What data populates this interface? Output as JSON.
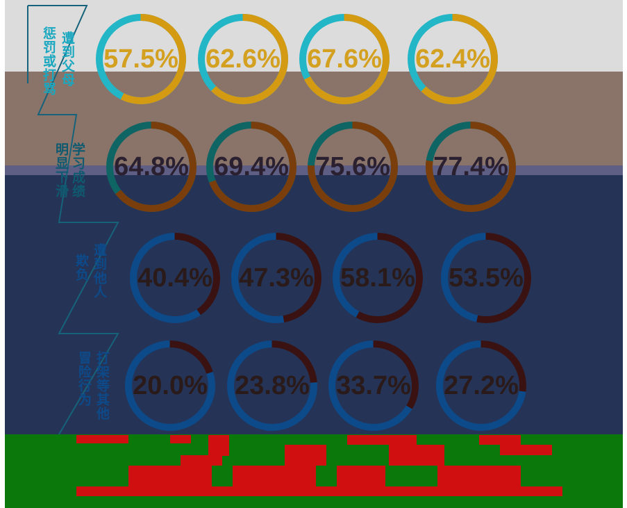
{
  "chart_data": {
    "type": "donut",
    "rows": [
      {
        "label_columns": [
          "遭到父母",
          "惩罚或打骂"
        ],
        "values": [
          57.5,
          62.6,
          67.6,
          62.4
        ],
        "value_labels": [
          "57.5%",
          "62.6%",
          "67.6%",
          "62.4%"
        ],
        "color": "#d49b12",
        "rest_color": "#22b6c6"
      },
      {
        "label_columns": [
          "学习成绩",
          "明显下滑"
        ],
        "values": [
          64.8,
          69.4,
          75.6,
          77.4
        ],
        "value_labels": [
          "64.8%",
          "69.4%",
          "75.6%",
          "77.4%"
        ],
        "color": "#7a3e0c",
        "rest_color": "#0f6464"
      },
      {
        "label_columns": [
          "遭到他人",
          "欺负"
        ],
        "values": [
          40.4,
          47.3,
          58.1,
          53.5
        ],
        "value_labels": [
          "40.4%",
          "47.3%",
          "58.1%",
          "53.5%"
        ],
        "color": "#3a1212",
        "rest_color": "#0d4a8a"
      },
      {
        "label_columns": [
          "打架等其他",
          "冒险行为"
        ],
        "values": [
          20.0,
          23.8,
          33.7,
          27.2
        ],
        "value_labels": [
          "20.0%",
          "23.8%",
          "33.7%",
          "27.2%"
        ],
        "color": "#3a1212",
        "rest_color": "#0d4a8a"
      }
    ]
  }
}
